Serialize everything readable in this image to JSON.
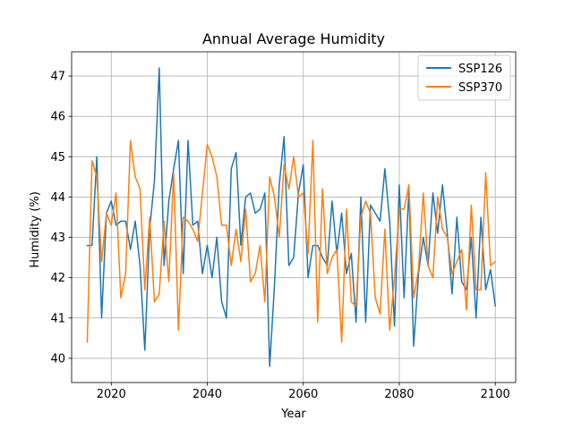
{
  "chart_data": {
    "type": "line",
    "title": "Annual Average Humidity",
    "xlabel": "Year",
    "ylabel": "Humidity (%)",
    "xlim": [
      2011.75,
      2104.25
    ],
    "ylim": [
      39.4,
      47.6
    ],
    "xticks": [
      2020,
      2040,
      2060,
      2080,
      2100
    ],
    "yticks": [
      40,
      41,
      42,
      43,
      44,
      45,
      46,
      47
    ],
    "grid": true,
    "legend_position": "top-right",
    "x": [
      2015,
      2016,
      2017,
      2018,
      2019,
      2020,
      2021,
      2022,
      2023,
      2024,
      2025,
      2026,
      2027,
      2028,
      2029,
      2030,
      2031,
      2032,
      2033,
      2034,
      2035,
      2036,
      2037,
      2038,
      2039,
      2040,
      2041,
      2042,
      2043,
      2044,
      2045,
      2046,
      2047,
      2048,
      2049,
      2050,
      2051,
      2052,
      2053,
      2054,
      2055,
      2056,
      2057,
      2058,
      2059,
      2060,
      2061,
      2062,
      2063,
      2064,
      2065,
      2066,
      2067,
      2068,
      2069,
      2070,
      2071,
      2072,
      2073,
      2074,
      2075,
      2076,
      2077,
      2078,
      2079,
      2080,
      2081,
      2082,
      2083,
      2084,
      2085,
      2086,
      2087,
      2088,
      2089,
      2090,
      2091,
      2092,
      2093,
      2094,
      2095,
      2096,
      2097,
      2098,
      2099,
      2100
    ],
    "series": [
      {
        "name": "SSP126",
        "color": "#1f77b4",
        "values": [
          42.8,
          42.8,
          45.0,
          41.0,
          43.6,
          43.9,
          43.3,
          43.4,
          43.4,
          42.7,
          43.4,
          42.3,
          40.2,
          43.2,
          44.4,
          47.2,
          42.3,
          43.9,
          44.7,
          45.4,
          42.1,
          45.4,
          43.3,
          43.4,
          42.1,
          42.8,
          42.0,
          43.0,
          41.4,
          41.0,
          44.7,
          45.1,
          42.8,
          44.0,
          44.1,
          43.6,
          43.7,
          44.1,
          39.8,
          41.8,
          44.3,
          45.5,
          42.3,
          42.5,
          44.1,
          44.8,
          42.0,
          42.8,
          42.8,
          42.5,
          42.3,
          43.9,
          42.6,
          43.6,
          42.1,
          42.6,
          40.9,
          44.0,
          40.9,
          43.8,
          43.6,
          43.4,
          44.7,
          43.4,
          40.8,
          44.3,
          41.5,
          44.2,
          40.3,
          42.1,
          43.0,
          42.3,
          44.1,
          43.1,
          44.3,
          43.1,
          41.6,
          43.5,
          41.9,
          41.7,
          43.0,
          41.0,
          43.5,
          41.7,
          42.2,
          41.3
        ]
      },
      {
        "name": "SSP370",
        "color": "#ff7f0e",
        "values": [
          40.4,
          44.9,
          44.5,
          42.4,
          43.6,
          43.3,
          44.1,
          41.5,
          42.1,
          45.4,
          44.5,
          44.2,
          41.7,
          43.5,
          41.4,
          41.6,
          43.4,
          41.9,
          44.6,
          40.7,
          43.5,
          43.4,
          43.2,
          42.9,
          44.1,
          45.3,
          45.0,
          44.5,
          43.3,
          43.3,
          42.3,
          43.2,
          42.4,
          43.7,
          41.9,
          42.1,
          42.8,
          41.4,
          44.5,
          44.0,
          43.0,
          44.8,
          44.2,
          45.0,
          44.0,
          44.1,
          42.6,
          45.4,
          40.9,
          44.2,
          42.1,
          42.5,
          42.7,
          40.4,
          43.7,
          41.4,
          41.3,
          43.5,
          43.9,
          43.6,
          41.5,
          41.1,
          43.2,
          40.7,
          42.0,
          43.7,
          43.7,
          44.3,
          41.5,
          42.2,
          44.1,
          42.3,
          42.0,
          44.0,
          43.2,
          43.0,
          42.1,
          42.4,
          42.7,
          41.2,
          43.8,
          41.7,
          41.7,
          44.6,
          42.3,
          42.4
        ]
      }
    ]
  }
}
